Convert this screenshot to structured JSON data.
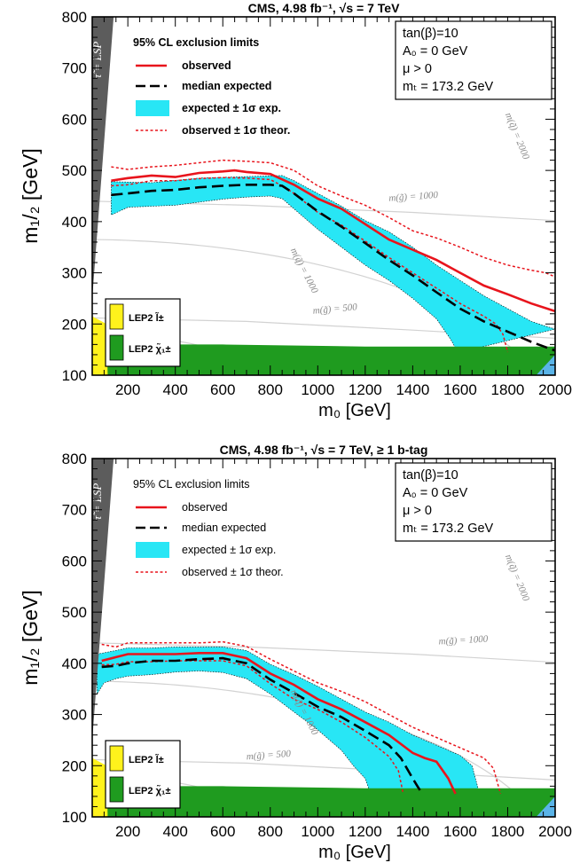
{
  "chart_data": [
    {
      "type": "line",
      "title": "CMS, 4.98 fb⁻¹, √s = 7 TeV",
      "xlabel": "m₀ [GeV]",
      "ylabel": "m₁/₂ [GeV]",
      "xlim": [
        50,
        2000
      ],
      "ylim": [
        100,
        800
      ],
      "xticks": [
        "200",
        "400",
        "600",
        "800",
        "1000",
        "1200",
        "1400",
        "1600",
        "1800",
        "2000"
      ],
      "yticks": [
        "100",
        "200",
        "300",
        "400",
        "500",
        "600",
        "700",
        "800"
      ],
      "legend_title": "95% CL exclusion limits",
      "legend_bold": true,
      "legend": {
        "observed": "observed",
        "median": "median expected",
        "band": "expected ± 1σ exp.",
        "theory": "observed ± 1σ theor."
      },
      "lep_legend": {
        "slepton": "LEP2 l̃±",
        "chargino": "LEP2 χ̃₁±"
      },
      "info": [
        "tan(β)=10",
        "A₀ = 0 GeV",
        "μ > 0",
        "mₜ = 173.2 GeV"
      ],
      "lsp_label": "τ̃ = LSP",
      "iso_labels": {
        "sq1000": "m(q̃) = 1000",
        "sq2000": "m(q̃) = 2000",
        "gl500": "m(g̃) = 500",
        "gl1000": "m(g̃) = 1000"
      },
      "colors": {
        "observed": "#e8141c",
        "median": "#000000",
        "band": "#28e6f5",
        "theory": "#e8141c",
        "lep_slepton": "#fff21c",
        "lep_chargino": "#1f9b1f",
        "lsp": "#5c5c5c",
        "iso": "#d2d2d2"
      },
      "series": [
        {
          "name": "observed",
          "x": [
            130,
            200,
            300,
            400,
            500,
            600,
            650,
            700,
            800,
            900,
            1000,
            1100,
            1200,
            1300,
            1400,
            1500,
            1600,
            1700,
            1800,
            1900,
            2000
          ],
          "y": [
            480,
            485,
            490,
            487,
            495,
            498,
            500,
            497,
            493,
            472,
            445,
            425,
            395,
            365,
            345,
            325,
            300,
            275,
            258,
            240,
            225
          ]
        },
        {
          "name": "median expected",
          "x": [
            130,
            200,
            300,
            400,
            500,
            600,
            700,
            800,
            850,
            900,
            1000,
            1100,
            1200,
            1300,
            1400,
            1500,
            1600,
            1700,
            1800,
            1900,
            2000
          ],
          "y": [
            452,
            455,
            460,
            462,
            467,
            470,
            472,
            472,
            470,
            455,
            420,
            390,
            358,
            325,
            295,
            262,
            230,
            205,
            185,
            165,
            148
          ]
        },
        {
          "name": "expected + 1σ",
          "x": [
            130,
            300,
            500,
            700,
            850,
            900,
            1000,
            1100,
            1200,
            1300,
            1400,
            1500,
            1600,
            1700,
            1800,
            1900,
            2000
          ],
          "y": [
            478,
            476,
            485,
            488,
            490,
            480,
            455,
            430,
            402,
            380,
            350,
            315,
            285,
            255,
            230,
            205,
            190
          ]
        },
        {
          "name": "expected − 1σ",
          "x": [
            130,
            200,
            300,
            400,
            500,
            600,
            700,
            800,
            850,
            900,
            1000,
            1100,
            1200,
            1300,
            1400,
            1500,
            1560,
            1590,
            1600
          ],
          "y": [
            413,
            428,
            430,
            432,
            438,
            444,
            448,
            450,
            445,
            425,
            385,
            350,
            315,
            285,
            250,
            210,
            170,
            145,
            145
          ]
        },
        {
          "name": "observed + 1σ theor.",
          "x": [
            130,
            200,
            300,
            400,
            500,
            600,
            700,
            800,
            900,
            1000,
            1100,
            1200,
            1300,
            1400,
            1500,
            1600,
            1700,
            1800,
            1900,
            1960,
            2000
          ],
          "y": [
            507,
            502,
            507,
            510,
            515,
            520,
            518,
            515,
            500,
            470,
            450,
            432,
            408,
            382,
            368,
            350,
            330,
            315,
            305,
            300,
            292
          ]
        },
        {
          "name": "observed − 1σ theor.",
          "x": [
            130,
            200,
            300,
            400,
            500,
            600,
            700,
            800,
            850,
            900,
            1000,
            1100,
            1200,
            1300,
            1400,
            1500,
            1600,
            1700,
            1750,
            1780,
            1800
          ],
          "y": [
            470,
            472,
            480,
            480,
            484,
            486,
            485,
            482,
            470,
            455,
            418,
            393,
            362,
            330,
            300,
            270,
            240,
            215,
            200,
            180,
            145
          ]
        }
      ]
    },
    {
      "type": "line",
      "title": "CMS, 4.98 fb⁻¹, √s = 7 TeV, ≥ 1 b-tag",
      "xlabel": "m₀ [GeV]",
      "ylabel": "m₁/₂ [GeV]",
      "xlim": [
        50,
        2000
      ],
      "ylim": [
        100,
        800
      ],
      "xticks": [
        "200",
        "400",
        "600",
        "800",
        "1000",
        "1200",
        "1400",
        "1600",
        "1800",
        "2000"
      ],
      "yticks": [
        "100",
        "200",
        "300",
        "400",
        "500",
        "600",
        "700",
        "800"
      ],
      "legend_title": "95% CL exclusion limits",
      "legend_bold": false,
      "legend": {
        "observed": "observed",
        "median": "median expected",
        "band": "expected ± 1σ exp.",
        "theory": "observed ± 1σ theor."
      },
      "lep_legend": {
        "slepton": "LEP2 l̃±",
        "chargino": "LEP2 χ̃₁±"
      },
      "info": [
        "tan(β)=10",
        "A₀ = 0 GeV",
        "μ > 0",
        "mₜ = 173.2 GeV"
      ],
      "lsp_label": "τ̃ = LSP",
      "iso_labels": {
        "sq1000": "m(q̃) = 1000",
        "sq2000": "m(q̃) = 2000",
        "gl500": "m(g̃) = 500",
        "gl1000": "m(g̃) = 1000"
      },
      "colors": {
        "observed": "#e8141c",
        "median": "#000000",
        "band": "#28e6f5",
        "theory": "#e8141c",
        "lep_slepton": "#fff21c",
        "lep_chargino": "#1f9b1f",
        "lsp": "#5c5c5c",
        "iso": "#d2d2d2"
      },
      "series": [
        {
          "name": "observed",
          "x": [
            90,
            150,
            200,
            300,
            400,
            500,
            600,
            700,
            800,
            900,
            1000,
            1100,
            1200,
            1300,
            1400,
            1450,
            1500,
            1550,
            1580
          ],
          "y": [
            405,
            412,
            418,
            418,
            418,
            420,
            420,
            410,
            380,
            358,
            330,
            310,
            285,
            260,
            225,
            215,
            208,
            175,
            145
          ]
        },
        {
          "name": "median expected",
          "x": [
            90,
            150,
            200,
            300,
            400,
            500,
            600,
            700,
            800,
            900,
            1000,
            1100,
            1200,
            1300,
            1350,
            1400,
            1420,
            1440
          ],
          "y": [
            393,
            395,
            400,
            405,
            405,
            408,
            410,
            400,
            368,
            342,
            315,
            295,
            268,
            240,
            215,
            175,
            160,
            145
          ]
        },
        {
          "name": "expected + 1σ",
          "x": [
            70,
            150,
            200,
            300,
            400,
            500,
            600,
            700,
            800,
            900,
            1000,
            1100,
            1200,
            1300,
            1400,
            1500,
            1600,
            1650,
            1680
          ],
          "y": [
            418,
            425,
            430,
            430,
            432,
            432,
            432,
            425,
            398,
            378,
            355,
            330,
            305,
            285,
            260,
            240,
            220,
            200,
            148
          ]
        },
        {
          "name": "expected − 1σ",
          "x": [
            70,
            100,
            150,
            200,
            300,
            400,
            500,
            600,
            700,
            800,
            900,
            1000,
            1100,
            1150,
            1200,
            1220
          ],
          "y": [
            340,
            362,
            370,
            375,
            378,
            383,
            385,
            382,
            370,
            340,
            305,
            270,
            230,
            200,
            175,
            148
          ]
        },
        {
          "name": "observed + 1σ theor.",
          "x": [
            90,
            150,
            200,
            300,
            400,
            500,
            600,
            700,
            800,
            900,
            1000,
            1100,
            1200,
            1300,
            1400,
            1500,
            1600,
            1700,
            1740,
            1770
          ],
          "y": [
            437,
            432,
            440,
            440,
            440,
            440,
            442,
            433,
            408,
            385,
            362,
            345,
            325,
            300,
            275,
            255,
            235,
            215,
            195,
            145
          ]
        },
        {
          "name": "observed − 1σ theor.",
          "x": [
            90,
            150,
            200,
            300,
            400,
            500,
            600,
            700,
            800,
            900,
            1000,
            1100,
            1200,
            1300,
            1340,
            1360
          ],
          "y": [
            397,
            398,
            403,
            403,
            405,
            405,
            405,
            395,
            360,
            330,
            310,
            285,
            255,
            218,
            190,
            145
          ]
        }
      ]
    }
  ]
}
